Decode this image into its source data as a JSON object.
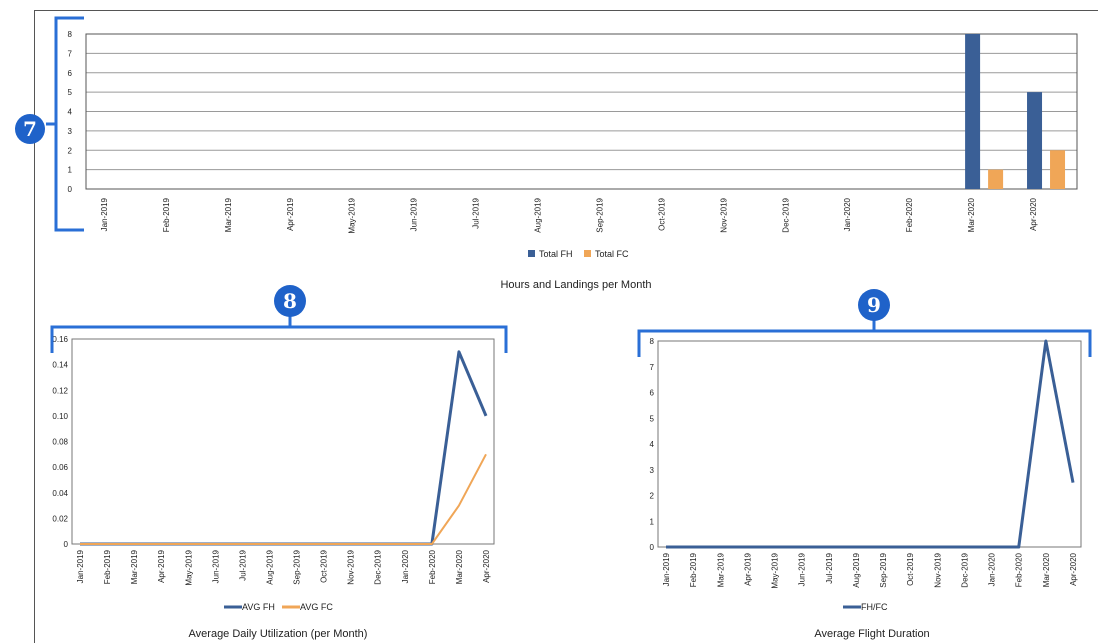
{
  "colors": {
    "fh": "#3a5f96",
    "fc": "#f0a657",
    "bracket": "#2a6fd6",
    "badge": "#1f62c9"
  },
  "badges": {
    "b7": "7",
    "b8": "8",
    "b9": "9"
  },
  "chart_data": [
    {
      "type": "bar",
      "title": "Hours and Landings per Month",
      "categories": [
        "Jan-2019",
        "Feb-2019",
        "Mar-2019",
        "Apr-2019",
        "May-2019",
        "Jun-2019",
        "Jul-2019",
        "Aug-2019",
        "Sep-2019",
        "Oct-2019",
        "Nov-2019",
        "Dec-2019",
        "Jan-2020",
        "Feb-2020",
        "Mar-2020",
        "Apr-2020"
      ],
      "series": [
        {
          "name": "Total FH",
          "values": [
            0,
            0,
            0,
            0,
            0,
            0,
            0,
            0,
            0,
            0,
            0,
            0,
            0,
            0,
            8,
            5
          ]
        },
        {
          "name": "Total FC",
          "values": [
            0,
            0,
            0,
            0,
            0,
            0,
            0,
            0,
            0,
            0,
            0,
            0,
            0,
            0,
            1,
            2
          ]
        }
      ],
      "yticks": [
        "0",
        "1",
        "2",
        "3",
        "4",
        "5",
        "6",
        "7",
        "8"
      ],
      "ylim": [
        0,
        8
      ],
      "grid": true,
      "legend": "bottom"
    },
    {
      "type": "line",
      "title": "Average Daily Utilization (per Month)",
      "categories": [
        "Jan-2019",
        "Feb-2019",
        "Mar-2019",
        "Apr-2019",
        "May-2019",
        "Jun-2019",
        "Jul-2019",
        "Aug-2019",
        "Sep-2019",
        "Oct-2019",
        "Nov-2019",
        "Dec-2019",
        "Jan-2020",
        "Feb-2020",
        "Mar-2020",
        "Apr-2020"
      ],
      "series": [
        {
          "name": "AVG FH",
          "values": [
            0,
            0,
            0,
            0,
            0,
            0,
            0,
            0,
            0,
            0,
            0,
            0,
            0,
            0,
            0.15,
            0.1
          ]
        },
        {
          "name": "AVG FC",
          "values": [
            0,
            0,
            0,
            0,
            0,
            0,
            0,
            0,
            0,
            0,
            0,
            0,
            0,
            0,
            0.03,
            0.07
          ]
        }
      ],
      "yticks": [
        "0",
        "0.02",
        "0.04",
        "0.06",
        "0.08",
        "0.10",
        "0.12",
        "0.14",
        "0.16"
      ],
      "ylim": [
        0,
        0.16
      ],
      "grid": false,
      "legend": "bottom"
    },
    {
      "type": "line",
      "title": "Average Flight Duration",
      "categories": [
        "Jan-2019",
        "Feb-2019",
        "Mar-2019",
        "Apr-2019",
        "May-2019",
        "Jun-2019",
        "Jul-2019",
        "Aug-2019",
        "Sep-2019",
        "Oct-2019",
        "Nov-2019",
        "Dec-2019",
        "Jan-2020",
        "Feb-2020",
        "Mar-2020",
        "Apr-2020"
      ],
      "series": [
        {
          "name": "FH/FC",
          "values": [
            0,
            0,
            0,
            0,
            0,
            0,
            0,
            0,
            0,
            0,
            0,
            0,
            0,
            0,
            8,
            2.5
          ]
        }
      ],
      "yticks": [
        "0",
        "1",
        "2",
        "3",
        "4",
        "5",
        "6",
        "7",
        "8"
      ],
      "ylim": [
        0,
        8
      ],
      "grid": false,
      "legend": "bottom"
    }
  ]
}
